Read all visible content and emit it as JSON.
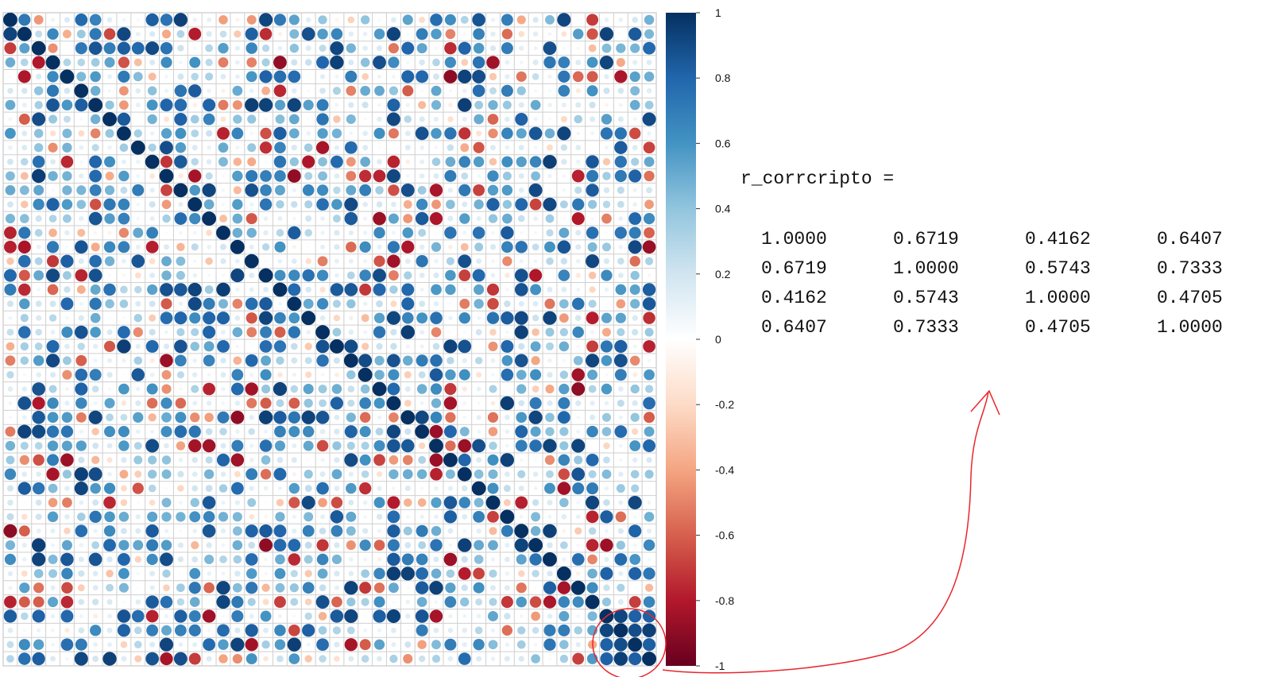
{
  "chart_data": [
    {
      "type": "heatmap",
      "title": "",
      "grid_size": 46,
      "note_values": "signed correlation per cell, circle size ~ |r|",
      "value_range": [
        -1,
        1
      ],
      "colorbar": {
        "ticks": [
          "1",
          "0.8",
          "0.6",
          "0.4",
          "0.2",
          "0",
          "-0.2",
          "-0.4",
          "-0.6",
          "-0.8",
          "-1"
        ],
        "tick_values": [
          1,
          0.8,
          0.6,
          0.4,
          0.2,
          0,
          -0.2,
          -0.4,
          -0.6,
          -0.8,
          -1
        ],
        "colors": {
          "positive": "#053061",
          "mid_positive": "#4393c3",
          "zero": "#ffffff",
          "mid_negative": "#d6604d",
          "negative": "#67001f"
        }
      },
      "grid_on": true,
      "highlighted_block": {
        "rows": [
          42,
          45
        ],
        "cols": [
          42,
          45
        ],
        "annotation": "red circle with arrow to matrix"
      }
    }
  ],
  "matrix": {
    "title": "r_corrcripto =",
    "rows": [
      [
        "1.0000",
        "0.6719",
        "0.4162",
        "0.6407"
      ],
      [
        "0.6719",
        "1.0000",
        "0.5743",
        "0.7333"
      ],
      [
        "0.4162",
        "0.5743",
        "1.0000",
        "0.4705"
      ],
      [
        "0.6407",
        "0.7333",
        "0.4705",
        "1.0000"
      ]
    ]
  }
}
